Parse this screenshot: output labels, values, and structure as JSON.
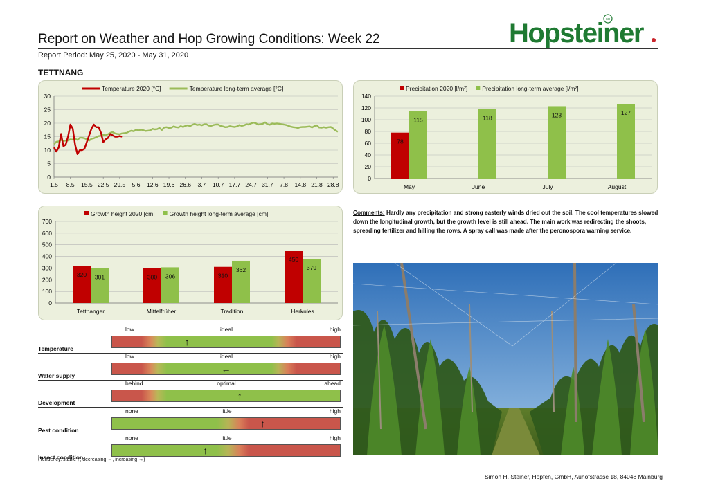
{
  "header": {
    "title": "Report on Weather and Hop Growing Conditions: Week 22",
    "report_period": "Report Period: May 25, 2020  - May 31, 2020",
    "region": "TETTNANG",
    "logo_text": "Hopsteiner",
    "logo_badge": "SH",
    "colors": {
      "logo_green": "#1f7a32",
      "logo_red": "#c9252c"
    }
  },
  "temperature_chart": {
    "chart_data": {
      "type": "line",
      "ylim": [
        0,
        30
      ],
      "yticks": [
        "0",
        "5",
        "10",
        "15",
        "20",
        "25",
        "30"
      ],
      "xtick_labels": [
        "1.5",
        "8.5",
        "15.5",
        "22.5",
        "29.5",
        "5.6",
        "12.6",
        "19.6",
        "26.6",
        "3.7",
        "10.7",
        "17.7",
        "24.7",
        "31.7",
        "7.8",
        "14.8",
        "21.8",
        "28.8"
      ],
      "x_count": 122,
      "series": [
        {
          "name": "Temperature 2020 [°C]",
          "color": "#c00000",
          "values": [
            11,
            9.5,
            11,
            16,
            11.5,
            12,
            15,
            19.5,
            18,
            12,
            8.5,
            10,
            10,
            10.5,
            13,
            15.5,
            18,
            19.5,
            18.5,
            18.5,
            16.5,
            13,
            14,
            14.5,
            16,
            15.5,
            15,
            15,
            15.2,
            15
          ]
        },
        {
          "name": "Temperature long-term average [°C]",
          "color": "#9bbb59",
          "values": [
            12.2,
            13.1,
            13.2,
            13.8,
            13.4,
            13.5,
            13.6,
            14.0,
            13.9,
            14.2,
            13.8,
            14.6,
            14.6,
            14.4,
            14.0,
            13.5,
            14.2,
            14.4,
            14.8,
            15.2,
            15.3,
            15.7,
            15.5,
            15.9,
            16.4,
            16.7,
            16.2,
            16.0,
            15.9,
            16.2,
            16.3,
            16.4,
            16.9,
            17.2,
            17.0,
            17.6,
            17.3,
            17.6,
            17.4,
            17.1,
            17.2,
            17.3,
            17.9,
            17.7,
            17.8,
            18.2,
            17.5,
            18.4,
            18.5,
            18.2,
            18.3,
            18.8,
            18.5,
            18.4,
            18.9,
            18.6,
            19.0,
            19.2,
            18.9,
            19.4,
            19.7,
            19.3,
            19.5,
            19.2,
            19.6,
            19.6,
            19.1,
            19.0,
            19.3,
            19.5,
            19.5,
            19.0,
            18.8,
            18.5,
            18.6,
            18.9,
            18.7,
            18.6,
            18.8,
            19.3,
            19.0,
            19.2,
            19.6,
            19.5,
            19.9,
            20.2,
            20.0,
            19.5,
            19.6,
            19.8,
            20.3,
            19.6,
            19.4,
            19.9,
            19.8,
            19.9,
            19.8,
            19.6,
            19.5,
            19.3,
            19.0,
            18.7,
            18.5,
            18.4,
            18.2,
            18.5,
            18.6,
            18.6,
            18.7,
            18.8,
            18.4,
            18.9,
            19.2,
            18.4,
            18.3,
            18.5,
            18.3,
            18.5,
            18.6,
            18.0,
            17.3,
            16.8
          ]
        }
      ]
    }
  },
  "precipitation_chart": {
    "chart_data": {
      "type": "bar",
      "ylim": [
        0,
        140
      ],
      "yticks": [
        "0",
        "20",
        "40",
        "60",
        "80",
        "100",
        "120",
        "140"
      ],
      "categories": [
        "May",
        "June",
        "July",
        "August"
      ],
      "series": [
        {
          "name": "Precipitation 2020 [l/m²]",
          "color": "#c00000",
          "values": [
            78,
            null,
            null,
            null
          ],
          "labels": [
            "78",
            "",
            "",
            ""
          ]
        },
        {
          "name": "Precipitation long-term average [l/m²]",
          "color": "#8fc04a",
          "values": [
            115,
            118,
            123,
            127
          ],
          "labels": [
            "115",
            "118",
            "123",
            "127"
          ]
        }
      ]
    }
  },
  "growth_chart": {
    "chart_data": {
      "type": "bar",
      "ylim": [
        0,
        700
      ],
      "yticks": [
        "0",
        "100",
        "200",
        "300",
        "400",
        "500",
        "600",
        "700"
      ],
      "categories": [
        "Tettnanger",
        "Mittelfrüher",
        "Tradition",
        "Herkules"
      ],
      "series": [
        {
          "name": "Growth height 2020 [cm]",
          "color": "#c00000",
          "values": [
            320,
            300,
            310,
            450
          ],
          "labels": [
            "320",
            "300",
            "310",
            "450"
          ]
        },
        {
          "name": "Growth height long-term average [cm]",
          "color": "#8fc04a",
          "values": [
            301,
            306,
            362,
            379
          ],
          "labels": [
            "301",
            "306",
            "362",
            "379"
          ]
        }
      ]
    }
  },
  "comments": {
    "label": "Comments:",
    "text": "Hardly any precipitation and strong easterly winds dried out the soil. The cool temperatures slowed down the longitudinal growth, but the growth level is still ahead. The main work was redirecting the shoots, spreading fertilizer and hilling the rows. A spray call was made after the peronospora warning service."
  },
  "conditions": [
    {
      "label": "Temperature",
      "scale": [
        "low",
        "ideal",
        "high"
      ],
      "arrow": "↑",
      "position": 0.33,
      "bar": "low-ideal-high"
    },
    {
      "label": "Water supply",
      "scale": [
        "low",
        "ideal",
        "high"
      ],
      "arrow": "←",
      "position": 0.5,
      "bar": "low-ideal-high"
    },
    {
      "label": "Development",
      "scale": [
        "behind",
        "optimal",
        "ahead"
      ],
      "arrow": "↑",
      "position": 0.56,
      "bar": "behind-ahead"
    },
    {
      "label": "Pest condition",
      "scale": [
        "none",
        "little",
        "high"
      ],
      "arrow": "↑",
      "position": 0.66,
      "bar": "none-high"
    },
    {
      "label": "Insect condition",
      "scale": [
        "none",
        "little",
        "high"
      ],
      "arrow": "↑",
      "position": 0.41,
      "bar": "none-high"
    }
  ],
  "tendency_note": "(Tendency: stable ↑, decreasing ←, increasing →)",
  "footer": "Simon H. Steiner, Hopfen, GmbH, Auhofstrasse 18, 84048 Mainburg",
  "photo": {
    "icon": "hop-field-photo"
  }
}
